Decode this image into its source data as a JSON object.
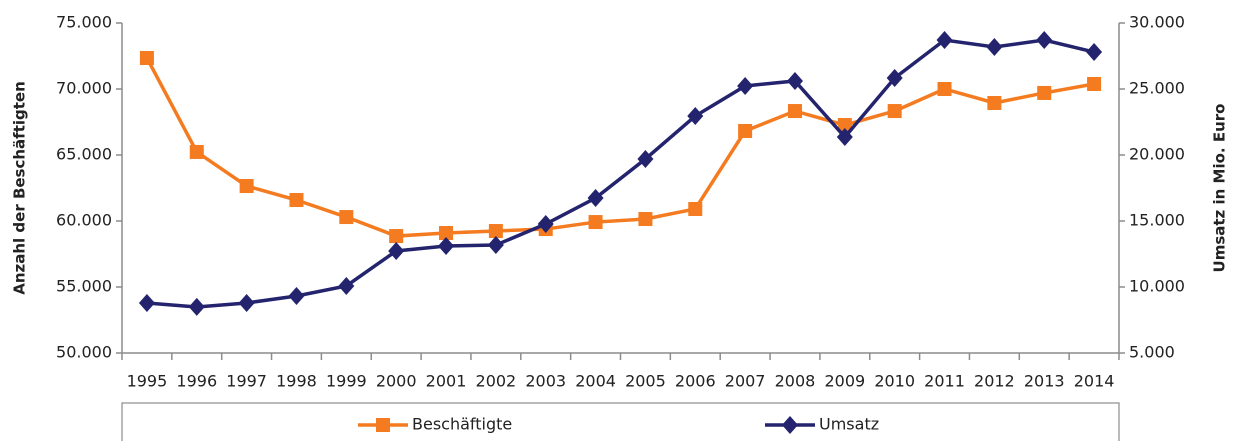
{
  "chart_data": {
    "type": "line",
    "categories": [
      "1995",
      "1996",
      "1997",
      "1998",
      "1999",
      "2000",
      "2001",
      "2002",
      "2003",
      "2004",
      "2005",
      "2006",
      "2007",
      "2008",
      "2009",
      "2010",
      "2011",
      "2012",
      "2013",
      "2014"
    ],
    "y_label": "Anzahl der Beschäftigten",
    "y2_label": "Umsatz in Mio. Euro",
    "series": [
      {
        "name": "Beschäftigte",
        "color": "#f47b20",
        "marker": "square",
        "values": [
          72350,
          65230,
          62650,
          61590,
          60300,
          58860,
          59090,
          59240,
          59390,
          59920,
          60150,
          60910,
          66820,
          68330,
          67270,
          68330,
          70000,
          68940,
          69700,
          70380
        ]
      },
      {
        "name": "Umsatz",
        "color": "#24236e",
        "marker": "diamond",
        "axis": "y2",
        "values": [
          8790,
          8490,
          8790,
          9320,
          10080,
          12730,
          13110,
          13180,
          14770,
          16740,
          19700,
          22950,
          25230,
          25610,
          21360,
          25830,
          28710,
          28180,
          28710,
          27800
        ]
      }
    ],
    "ylim": [
      50000,
      75000
    ],
    "yticks": [
      {
        "value": 50000,
        "label": "50.000"
      },
      {
        "value": 55000,
        "label": "55.000"
      },
      {
        "value": 60000,
        "label": "60.000"
      },
      {
        "value": 65000,
        "label": "65.000"
      },
      {
        "value": 70000,
        "label": "70.000"
      },
      {
        "value": 75000,
        "label": "75.000"
      }
    ],
    "y2lim": [
      5000,
      30000
    ],
    "y2ticks": [
      {
        "value": 5000,
        "label": "5.000"
      },
      {
        "value": 10000,
        "label": "10.000"
      },
      {
        "value": 15000,
        "label": "15.000"
      },
      {
        "value": 20000,
        "label": "20.000"
      },
      {
        "value": 25000,
        "label": "25.000"
      },
      {
        "value": 30000,
        "label": "30.000"
      }
    ],
    "grid": false,
    "legend": "bottom"
  }
}
